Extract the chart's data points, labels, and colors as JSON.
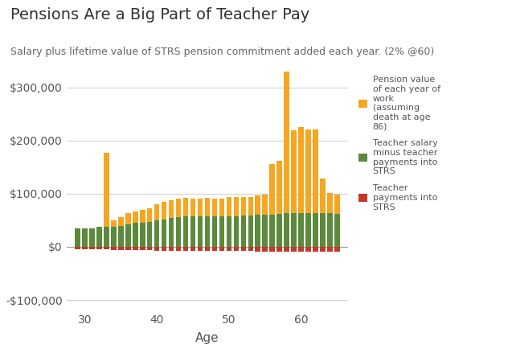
{
  "title": "Pensions Are a Big Part of Teacher Pay",
  "subtitle": "Salary plus lifetime value of STRS pension commitment added each year. (2% @60)",
  "xlabel": "Age",
  "ages": [
    29,
    30,
    31,
    32,
    33,
    34,
    35,
    36,
    37,
    38,
    39,
    40,
    41,
    42,
    43,
    44,
    45,
    46,
    47,
    48,
    49,
    50,
    51,
    52,
    53,
    54,
    55,
    56,
    57,
    58,
    59,
    60,
    61,
    62,
    63,
    64,
    65
  ],
  "pension_raw": [
    0,
    0,
    0,
    0,
    140000,
    12000,
    16000,
    20000,
    22000,
    24000,
    26000,
    30000,
    33000,
    34000,
    35000,
    35000,
    34000,
    34000,
    35000,
    34000,
    34000,
    35000,
    35000,
    35000,
    35000,
    36000,
    37000,
    95000,
    100000,
    280000,
    157000,
    162000,
    158000,
    158000,
    65000,
    38000,
    36000
  ],
  "salary_net_raw": [
    35000,
    35000,
    35000,
    37000,
    37000,
    38000,
    40000,
    43000,
    45000,
    46000,
    47000,
    50000,
    52000,
    54000,
    56000,
    57000,
    57000,
    57000,
    57000,
    57000,
    57000,
    58000,
    58000,
    59000,
    59000,
    60000,
    61000,
    61000,
    62000,
    63000,
    63000,
    63000,
    63000,
    63000,
    63000,
    63000,
    62000
  ],
  "teacher_strs_raw": [
    -5000,
    -5000,
    -5000,
    -5200,
    -5200,
    -5500,
    -5800,
    -6000,
    -6200,
    -6500,
    -6700,
    -7000,
    -7200,
    -7500,
    -7800,
    -8000,
    -8000,
    -8000,
    -8000,
    -8000,
    -8000,
    -8200,
    -8200,
    -8300,
    -8300,
    -8500,
    -8700,
    -8700,
    -8800,
    -9000,
    -9000,
    -9000,
    -9000,
    -9000,
    -9000,
    -8700,
    -8500
  ],
  "pension_color": "#f5a623",
  "salary_color": "#5b8a3c",
  "strs_color": "#c0392b",
  "background_color": "#ffffff",
  "grid_color": "#cccccc",
  "yticks": [
    -100000,
    0,
    100000,
    200000,
    300000
  ],
  "xticks": [
    30,
    40,
    50,
    60
  ],
  "xlim": [
    27.5,
    66.5
  ],
  "ylim": [
    -120000,
    330000
  ],
  "legend_labels": [
    "Pension value\nof each year of\nwork\n(assuming\ndeath at age\n86)",
    "Teacher salary\nminus teacher\npayments into\nSTRS",
    "Teacher\npayments into\nSTRS"
  ],
  "title_fontsize": 14,
  "subtitle_fontsize": 9,
  "tick_fontsize": 10,
  "xlabel_fontsize": 11,
  "legend_fontsize": 8,
  "bar_width": 0.75
}
